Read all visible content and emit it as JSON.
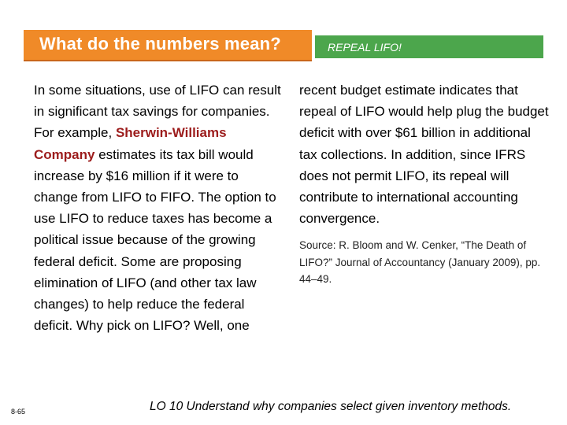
{
  "header": {
    "title": "What do the numbers mean?",
    "subtitle": "REPEAL LIFO!"
  },
  "body": {
    "left_before": "In some situations, use of LIFO can result in significant tax savings for companies. For example, ",
    "company": "Sherwin-Williams Company",
    "left_after": " estimates its tax bill would increase by $16 million if it were to change from LIFO to FIFO. The option to use LIFO to reduce taxes has become a political issue because of the growing federal deficit. Some are proposing elimination of LIFO (and other tax law changes) to help reduce the federal deficit. Why pick on LIFO? Well, one",
    "right": "recent budget estimate indicates that repeal of LIFO would help plug the budget deficit with over $61 billion in additional tax collections. In addition, since IFRS does not permit LIFO, its repeal will contribute to international accounting convergence.",
    "source": "Source: R. Bloom and W. Cenker, “The Death of LIFO?” Journal of Accountancy (January 2009), pp. 44–49."
  },
  "footer": {
    "page_number": "8-65",
    "learning_objective": "LO 10  Understand why companies select given inventory methods."
  },
  "colors": {
    "header_orange": "#f08a28",
    "header_green": "#4ca64c",
    "company_name": "#9c1c1c"
  }
}
